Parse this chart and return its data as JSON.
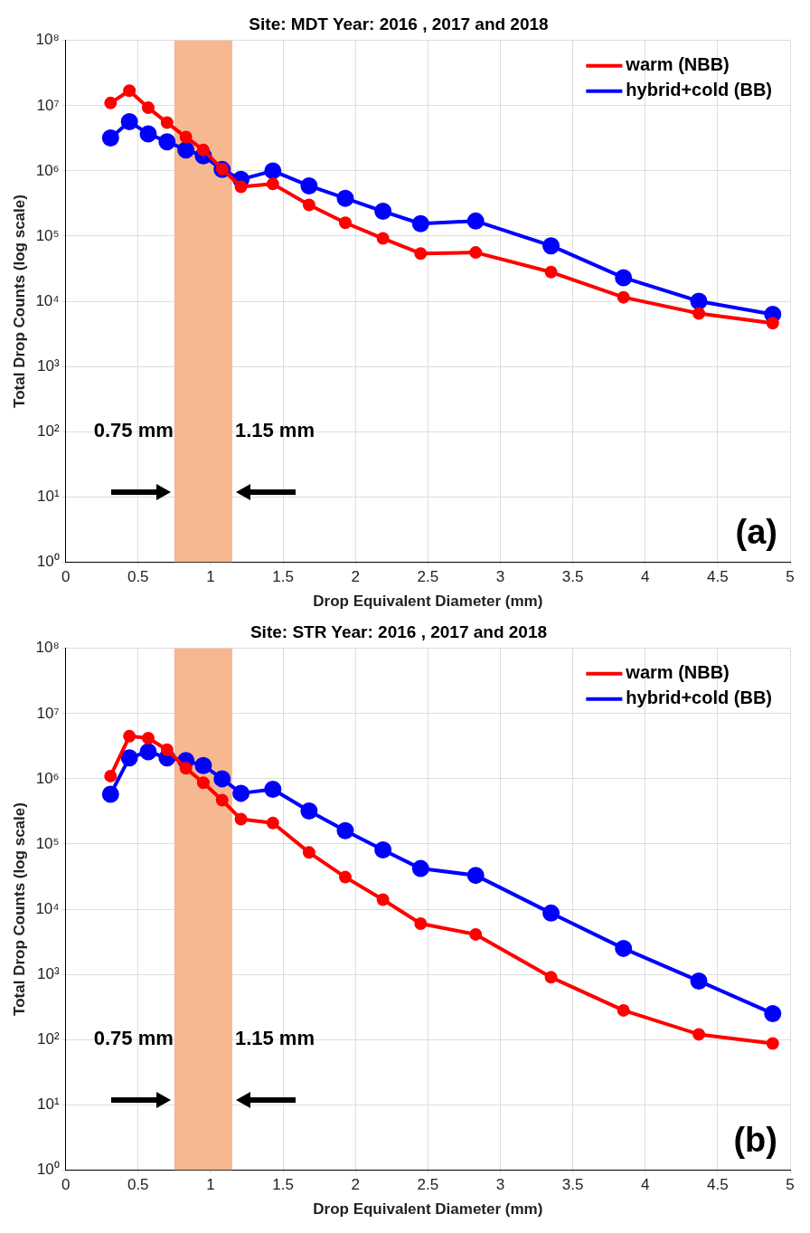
{
  "chart_data": [
    {
      "type": "line",
      "title": "Site: MDT Year: 2016 , 2017 and 2018",
      "xlabel": "Drop Equivalent Diameter (mm)",
      "ylabel": "Total Drop Counts (log scale)",
      "x": [
        0.31,
        0.44,
        0.57,
        0.7,
        0.83,
        0.95,
        1.08,
        1.21,
        1.43,
        1.68,
        1.93,
        2.19,
        2.45,
        2.83,
        3.35,
        3.85,
        4.37,
        4.88
      ],
      "series": [
        {
          "name": "warm (NBB)",
          "color": "#ff0000",
          "values": [
            11000000,
            17000000,
            9300000,
            5500000,
            3300000,
            2100000,
            1070000,
            570000,
            630000,
            300000,
            160000,
            92000,
            54000,
            56000,
            28000,
            11500,
            6500,
            4600
          ]
        },
        {
          "name": "hybrid+cold (BB)",
          "color": "#0000ff",
          "values": [
            3200000,
            5700000,
            3700000,
            2800000,
            2100000,
            1700000,
            1050000,
            740000,
            1000000,
            590000,
            380000,
            240000,
            155000,
            170000,
            71000,
            23000,
            10000,
            6300
          ]
        }
      ],
      "log": "y",
      "xlim": [
        0,
        5
      ],
      "ylim": [
        1,
        100000000
      ],
      "xticks": [
        0,
        0.5,
        1,
        1.5,
        2,
        2.5,
        3,
        3.5,
        4,
        4.5,
        5
      ],
      "yticks": [
        {
          "value": 1,
          "label": "10⁰"
        },
        {
          "value": 10,
          "label": "10¹"
        },
        {
          "value": 100,
          "label": "10²"
        },
        {
          "value": 1000,
          "label": "10³"
        },
        {
          "value": 10000,
          "label": "10⁴"
        },
        {
          "value": 100000,
          "label": "10⁵"
        },
        {
          "value": 1000000,
          "label": "10⁶"
        },
        {
          "value": 10000000,
          "label": "10⁷"
        },
        {
          "value": 100000000,
          "label": "10⁸"
        }
      ],
      "bands": [
        {
          "axis": "x",
          "from": 0.75,
          "to": 1.15,
          "color": "#f5b890"
        }
      ],
      "annotations": [
        "0.75 mm",
        "1.15 mm",
        "(a)"
      ],
      "grid": true,
      "legend": "top right",
      "marker": "circle",
      "line_style": "solid"
    },
    {
      "type": "line",
      "title": "Site: STR Year: 2016 , 2017 and 2018",
      "xlabel": "Drop Equivalent Diameter (mm)",
      "ylabel": "Total Drop Counts (log scale)",
      "x": [
        0.31,
        0.44,
        0.57,
        0.7,
        0.83,
        0.95,
        1.08,
        1.21,
        1.43,
        1.68,
        1.93,
        2.19,
        2.45,
        2.83,
        3.35,
        3.85,
        4.37,
        4.88
      ],
      "series": [
        {
          "name": "warm (NBB)",
          "color": "#ff0000",
          "values": [
            1100000,
            4500000,
            4200000,
            2800000,
            1450000,
            870000,
            470000,
            240000,
            210000,
            74000,
            31000,
            14000,
            6000,
            4100,
            900,
            280,
            120,
            87
          ]
        },
        {
          "name": "hybrid+cold (BB)",
          "color": "#0000ff",
          "values": [
            580000,
            2100000,
            2600000,
            2100000,
            1900000,
            1600000,
            1000000,
            600000,
            690000,
            320000,
            160000,
            81000,
            42000,
            33000,
            8700,
            2500,
            790,
            250
          ]
        }
      ],
      "log": "y",
      "xlim": [
        0,
        5
      ],
      "ylim": [
        1,
        100000000
      ],
      "xticks": [
        0,
        0.5,
        1,
        1.5,
        2,
        2.5,
        3,
        3.5,
        4,
        4.5,
        5
      ],
      "yticks": [
        {
          "value": 1,
          "label": "10⁰"
        },
        {
          "value": 10,
          "label": "10¹"
        },
        {
          "value": 100,
          "label": "10²"
        },
        {
          "value": 1000,
          "label": "10³"
        },
        {
          "value": 10000,
          "label": "10⁴"
        },
        {
          "value": 100000,
          "label": "10⁵"
        },
        {
          "value": 1000000,
          "label": "10⁶"
        },
        {
          "value": 10000000,
          "label": "10⁷"
        },
        {
          "value": 100000000,
          "label": "10⁸"
        }
      ],
      "bands": [
        {
          "axis": "x",
          "from": 0.75,
          "to": 1.15,
          "color": "#f5b890"
        }
      ],
      "annotations": [
        "0.75 mm",
        "1.15 mm",
        "(b)"
      ],
      "grid": true,
      "legend": "top right",
      "marker": "circle",
      "line_style": "solid"
    }
  ]
}
